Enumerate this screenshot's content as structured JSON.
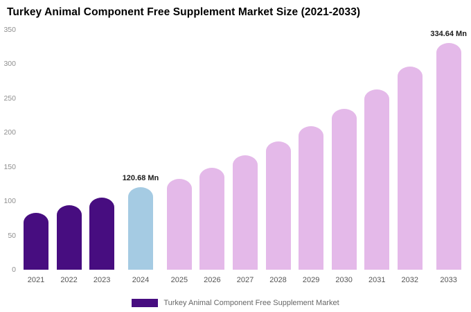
{
  "chart_data": {
    "type": "bar",
    "title": "Turkey Animal Component Free Supplement Market Size (2021-2033)",
    "categories": [
      "2021",
      "2022",
      "2023",
      "2024",
      "2025",
      "2026",
      "2027",
      "2028",
      "2029",
      "2030",
      "2031",
      "2032",
      "2033"
    ],
    "values": [
      83,
      94,
      105,
      120.68,
      133,
      149,
      167,
      187,
      209,
      235,
      263,
      296,
      334.64
    ],
    "unit": "Mn",
    "xlabel": "",
    "ylabel": "",
    "ylim": [
      0,
      350
    ],
    "yticks": [
      0,
      50,
      100,
      150,
      200,
      250,
      300,
      350
    ],
    "grid": false,
    "legend": "Turkey Animal Component Free Supplement Market",
    "legend_position": "bottom",
    "colors": {
      "historical": "#470d80",
      "highlight": "#a5cbe3",
      "forecast": "#e4b9e9"
    },
    "color_keys": [
      "historical",
      "historical",
      "historical",
      "highlight",
      "forecast",
      "forecast",
      "forecast",
      "forecast",
      "forecast",
      "forecast",
      "forecast",
      "forecast",
      "forecast"
    ],
    "annotations": [
      {
        "index": 3,
        "text": "120.68 Mn"
      },
      {
        "index": 12,
        "text": "334.64 Mn"
      }
    ]
  }
}
